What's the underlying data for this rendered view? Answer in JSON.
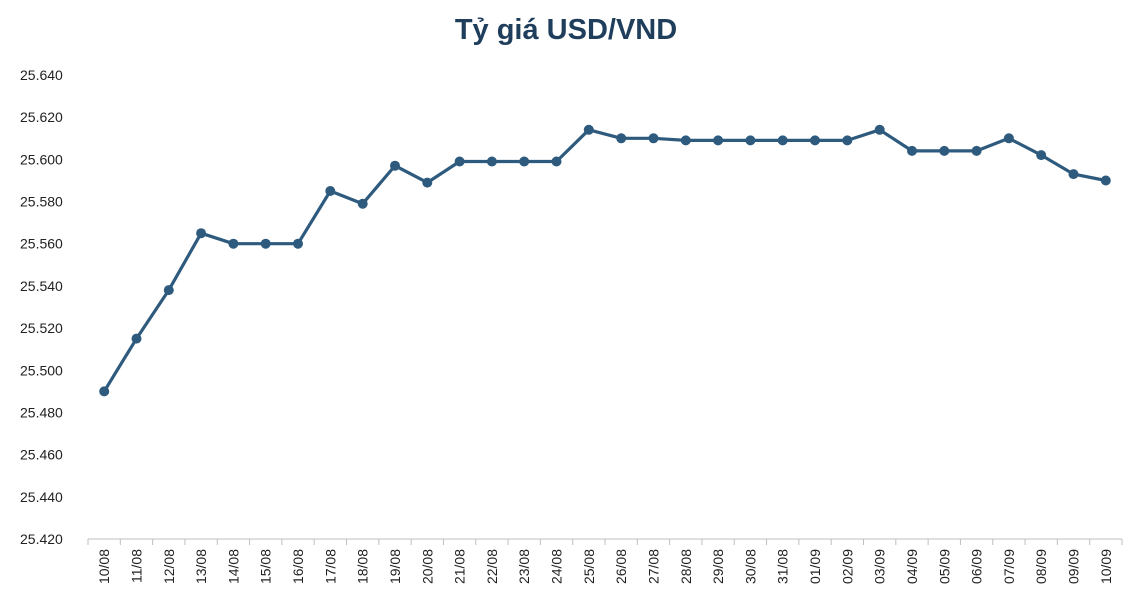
{
  "chart_data": {
    "type": "line",
    "title": "Tỷ giá USD/VND",
    "xlabel": "",
    "ylabel": "",
    "ylim": [
      25420,
      25640
    ],
    "ytick_step": 20,
    "ytick_labels": [
      "25.420",
      "25.440",
      "25.460",
      "25.480",
      "25.500",
      "25.520",
      "25.540",
      "25.560",
      "25.580",
      "25.600",
      "25.620",
      "25.640"
    ],
    "grid": false,
    "legend": "none",
    "colors": {
      "line": "#2e5a7e",
      "marker": "#2e5a7e"
    },
    "categories": [
      "10/08",
      "11/08",
      "12/08",
      "13/08",
      "14/08",
      "15/08",
      "16/08",
      "17/08",
      "18/08",
      "19/08",
      "20/08",
      "21/08",
      "22/08",
      "23/08",
      "24/08",
      "25/08",
      "26/08",
      "27/08",
      "28/08",
      "29/08",
      "30/08",
      "31/08",
      "01/09",
      "02/09",
      "03/09",
      "04/09",
      "05/09",
      "06/09",
      "07/09",
      "08/09",
      "09/09",
      "10/09"
    ],
    "series": [
      {
        "values": [
          25490,
          25515,
          25538,
          25565,
          25560,
          25560,
          25560,
          25585,
          25579,
          25597,
          25589,
          25599,
          25599,
          25599,
          25599,
          25614,
          25610,
          25610,
          25609,
          25609,
          25609,
          25609,
          25609,
          25609,
          25614,
          25604,
          25604,
          25604,
          25610,
          25602,
          25593,
          25590
        ]
      }
    ]
  }
}
